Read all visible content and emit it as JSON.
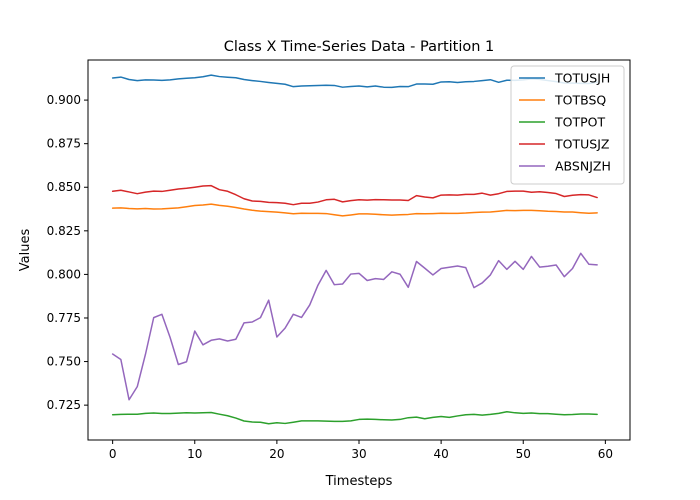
{
  "chart_data": {
    "type": "line",
    "title": "Class X Time-Series Data - Partition 1",
    "xlabel": "Timesteps",
    "ylabel": "Values",
    "xlim": [
      -3,
      63
    ],
    "ylim": [
      0.705,
      0.923
    ],
    "xticks": [
      0,
      10,
      20,
      30,
      40,
      50,
      60
    ],
    "yticks": [
      0.725,
      0.75,
      0.775,
      0.8,
      0.825,
      0.85,
      0.875,
      0.9
    ],
    "ytick_labels": [
      "0.725",
      "0.750",
      "0.775",
      "0.800",
      "0.825",
      "0.850",
      "0.875",
      "0.900"
    ],
    "legend_position": "top-right",
    "series": [
      {
        "name": "TOTUSJH",
        "color": "#1f77b4",
        "values": [
          0.9127,
          0.9132,
          0.9118,
          0.9112,
          0.9116,
          0.9115,
          0.9113,
          0.9116,
          0.9122,
          0.9125,
          0.9128,
          0.9134,
          0.9143,
          0.9135,
          0.9131,
          0.9128,
          0.9118,
          0.9112,
          0.9107,
          0.9101,
          0.9096,
          0.9091,
          0.9077,
          0.9081,
          0.9082,
          0.9084,
          0.9085,
          0.9084,
          0.9074,
          0.9078,
          0.9081,
          0.9076,
          0.9081,
          0.9074,
          0.9073,
          0.9078,
          0.9077,
          0.9092,
          0.9092,
          0.9091,
          0.9104,
          0.9105,
          0.9101,
          0.9105,
          0.9107,
          0.9112,
          0.9117,
          0.9102,
          0.9114,
          0.9113,
          0.9116,
          0.9122,
          0.9119,
          0.9112,
          0.9106,
          0.9098,
          0.9097,
          0.9096,
          0.9095,
          0.9103
        ]
      },
      {
        "name": "TOTBSQ",
        "color": "#ff7f0e",
        "values": [
          0.838,
          0.8382,
          0.8378,
          0.8376,
          0.8378,
          0.8375,
          0.8376,
          0.8379,
          0.8382,
          0.8388,
          0.8395,
          0.8398,
          0.8403,
          0.8396,
          0.8391,
          0.8384,
          0.8375,
          0.8368,
          0.8363,
          0.836,
          0.8357,
          0.8353,
          0.8348,
          0.8351,
          0.835,
          0.835,
          0.8349,
          0.8342,
          0.8336,
          0.8341,
          0.8347,
          0.8347,
          0.8345,
          0.8342,
          0.834,
          0.8342,
          0.8344,
          0.8349,
          0.8348,
          0.8349,
          0.8351,
          0.835,
          0.835,
          0.8352,
          0.8355,
          0.8357,
          0.8358,
          0.8362,
          0.8367,
          0.8366,
          0.8367,
          0.8367,
          0.8365,
          0.8362,
          0.8361,
          0.8358,
          0.8358,
          0.8354,
          0.8351,
          0.8353
        ]
      },
      {
        "name": "TOTPOT",
        "color": "#2ca02c",
        "values": [
          0.7195,
          0.7197,
          0.7198,
          0.7198,
          0.7203,
          0.7205,
          0.7202,
          0.7202,
          0.7204,
          0.7206,
          0.7205,
          0.7206,
          0.7208,
          0.7198,
          0.7189,
          0.7176,
          0.7159,
          0.7153,
          0.7152,
          0.7143,
          0.7149,
          0.7145,
          0.7152,
          0.716,
          0.716,
          0.716,
          0.7158,
          0.7157,
          0.7157,
          0.716,
          0.7168,
          0.717,
          0.7168,
          0.7166,
          0.7165,
          0.7168,
          0.7178,
          0.7181,
          0.7172,
          0.718,
          0.7185,
          0.718,
          0.7188,
          0.7195,
          0.7197,
          0.7193,
          0.7197,
          0.7203,
          0.7212,
          0.7206,
          0.7203,
          0.7205,
          0.7201,
          0.7201,
          0.7198,
          0.7195,
          0.7196,
          0.7199,
          0.7199,
          0.7197
        ]
      },
      {
        "name": "TOTUSJZ",
        "color": "#d62728",
        "values": [
          0.8477,
          0.8483,
          0.8473,
          0.8463,
          0.8472,
          0.8478,
          0.8476,
          0.8483,
          0.849,
          0.8494,
          0.85,
          0.8507,
          0.8509,
          0.8486,
          0.8477,
          0.8457,
          0.8434,
          0.8421,
          0.8419,
          0.8413,
          0.8412,
          0.8408,
          0.84,
          0.8408,
          0.8408,
          0.8415,
          0.8428,
          0.8431,
          0.8416,
          0.8423,
          0.8428,
          0.8426,
          0.8429,
          0.8428,
          0.8427,
          0.8427,
          0.8424,
          0.8452,
          0.8444,
          0.8439,
          0.8455,
          0.8456,
          0.8455,
          0.8459,
          0.8459,
          0.8466,
          0.8455,
          0.8463,
          0.8476,
          0.8478,
          0.8478,
          0.8471,
          0.8474,
          0.847,
          0.8464,
          0.8447,
          0.8454,
          0.8458,
          0.8456,
          0.8441
        ]
      },
      {
        "name": "ABSNJZH",
        "color": "#9467bd",
        "values": [
          0.7543,
          0.7512,
          0.7281,
          0.7356,
          0.7542,
          0.7752,
          0.7771,
          0.7638,
          0.7483,
          0.7499,
          0.7675,
          0.7596,
          0.7622,
          0.763,
          0.7618,
          0.7628,
          0.7722,
          0.7727,
          0.7752,
          0.7852,
          0.7641,
          0.7692,
          0.7771,
          0.7753,
          0.7825,
          0.7938,
          0.8023,
          0.7941,
          0.7945,
          0.8002,
          0.8006,
          0.7965,
          0.7976,
          0.7971,
          0.8015,
          0.8001,
          0.7926,
          0.8074,
          0.8036,
          0.7997,
          0.8034,
          0.8041,
          0.8048,
          0.8039,
          0.7924,
          0.7951,
          0.7997,
          0.8079,
          0.8029,
          0.8075,
          0.8029,
          0.8103,
          0.8042,
          0.8047,
          0.8054,
          0.7987,
          0.8034,
          0.8121,
          0.8058,
          0.8055
        ]
      }
    ]
  }
}
